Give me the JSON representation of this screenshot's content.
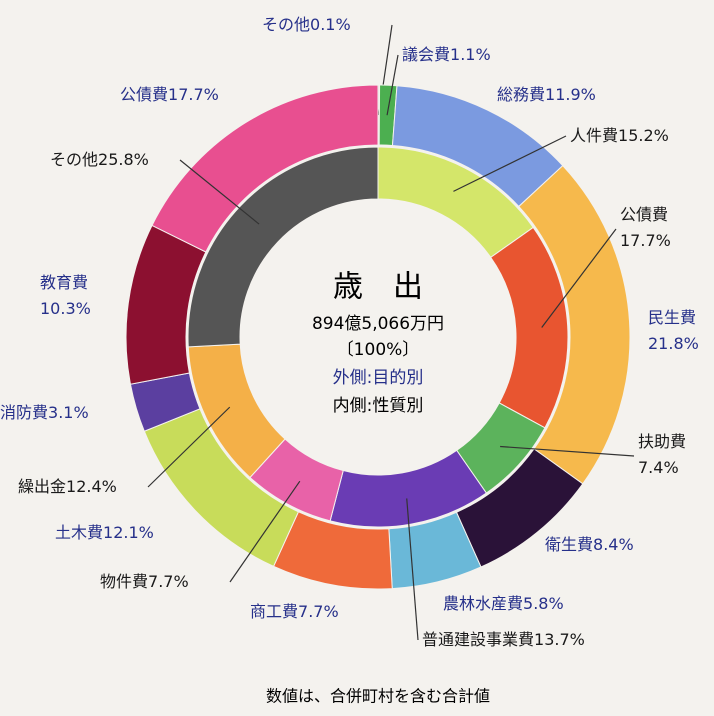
{
  "chart_data": {
    "type": "nested-donut",
    "title": "歳　出",
    "total": "894億5,066万円",
    "total_share": "〔100%〕",
    "ring_notes": [
      "外側:目的別",
      "内側:性質別"
    ],
    "note": "数値は、合併町村を含む合計値",
    "series": [
      {
        "categories": [
          "その他",
          "議会費",
          "総務費",
          "民生費",
          "衛生費",
          "農林水産費",
          "商工費",
          "土木費",
          "消防費",
          "教育費",
          "公債費"
        ],
        "values": [
          0.1,
          1.1,
          11.9,
          21.8,
          8.4,
          5.8,
          7.7,
          12.1,
          3.1,
          10.3,
          17.7
        ],
        "value_labels": [
          "0.1%",
          "1.1%",
          "11.9%",
          "21.8%",
          "8.4%",
          "5.8%",
          "7.7%",
          "12.1%",
          "3.1%",
          "10.3%",
          "17.7%"
        ],
        "colors": [
          "#e0e0e0",
          "#4caf50",
          "#7b9ae0",
          "#f6b94c",
          "#2a1238",
          "#6ab8d8",
          "#ef6a3a",
          "#c8dc5a",
          "#5b3fa0",
          "#8c1030",
          "#e84f90"
        ]
      },
      {
        "categories": [
          "人件費",
          "公債費",
          "扶助費",
          "普通建設事業費",
          "物件費",
          "繰出金",
          "その他"
        ],
        "values": [
          15.2,
          17.7,
          7.4,
          13.7,
          7.7,
          12.4,
          25.8
        ],
        "value_labels": [
          "15.2%",
          "17.7%",
          "7.4%",
          "13.7%",
          "7.7%",
          "12.4%",
          "25.8%"
        ],
        "colors": [
          "#d4e66a",
          "#e85530",
          "#5cb35c",
          "#6a3cb4",
          "#e862a8",
          "#f4b048",
          "#555555"
        ]
      }
    ]
  }
}
